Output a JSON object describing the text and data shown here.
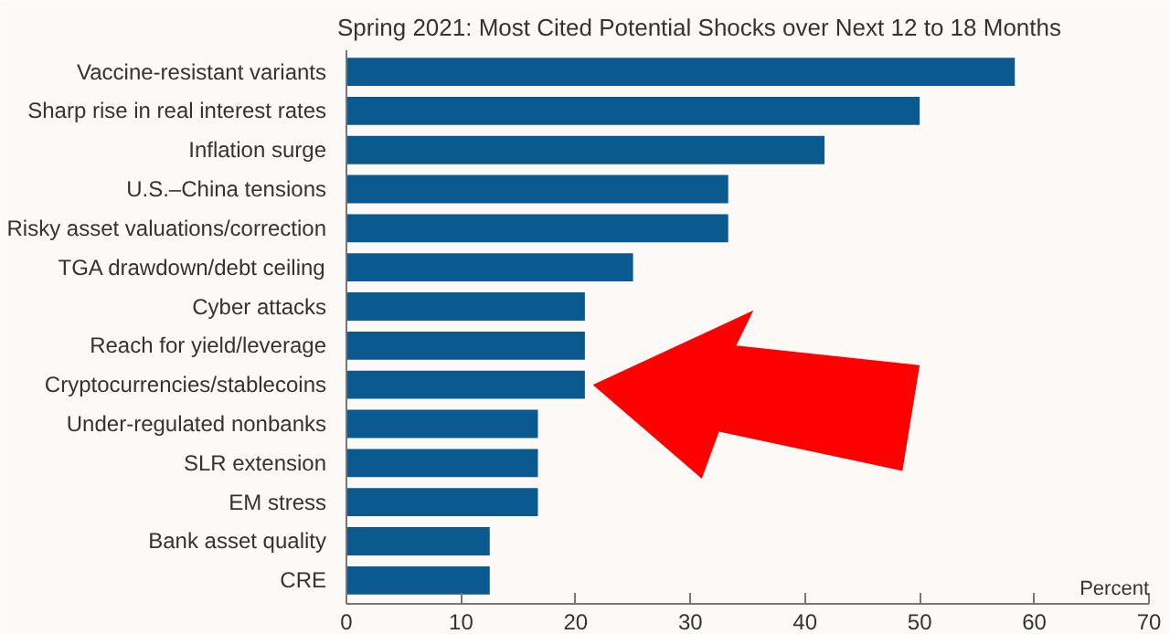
{
  "chart_data": {
    "type": "bar",
    "orientation": "horizontal",
    "title": "Spring 2021: Most Cited Potential Shocks over Next 12 to 18 Months",
    "xlabel": "Percent",
    "categories": [
      "Vaccine-resistant variants",
      "Sharp rise in real interest rates",
      "Inflation surge",
      "U.S.–China tensions",
      "Risky asset valuations/correction",
      "TGA drawdown/debt ceiling",
      "Cyber attacks",
      "Reach for yield/leverage",
      "Cryptocurrencies/stablecoins",
      "Under-regulated nonbanks",
      "SLR extension",
      "EM stress",
      "Bank asset quality",
      "CRE"
    ],
    "values": [
      58.3,
      50,
      41.7,
      33.3,
      33.3,
      25,
      20.8,
      20.8,
      20.8,
      16.7,
      16.7,
      16.7,
      12.5,
      12.5
    ],
    "color": "#0a5a8f",
    "xlim": [
      0,
      70
    ],
    "xticks": [
      0,
      10,
      20,
      30,
      40,
      50,
      60,
      70
    ],
    "grid": false
  }
}
